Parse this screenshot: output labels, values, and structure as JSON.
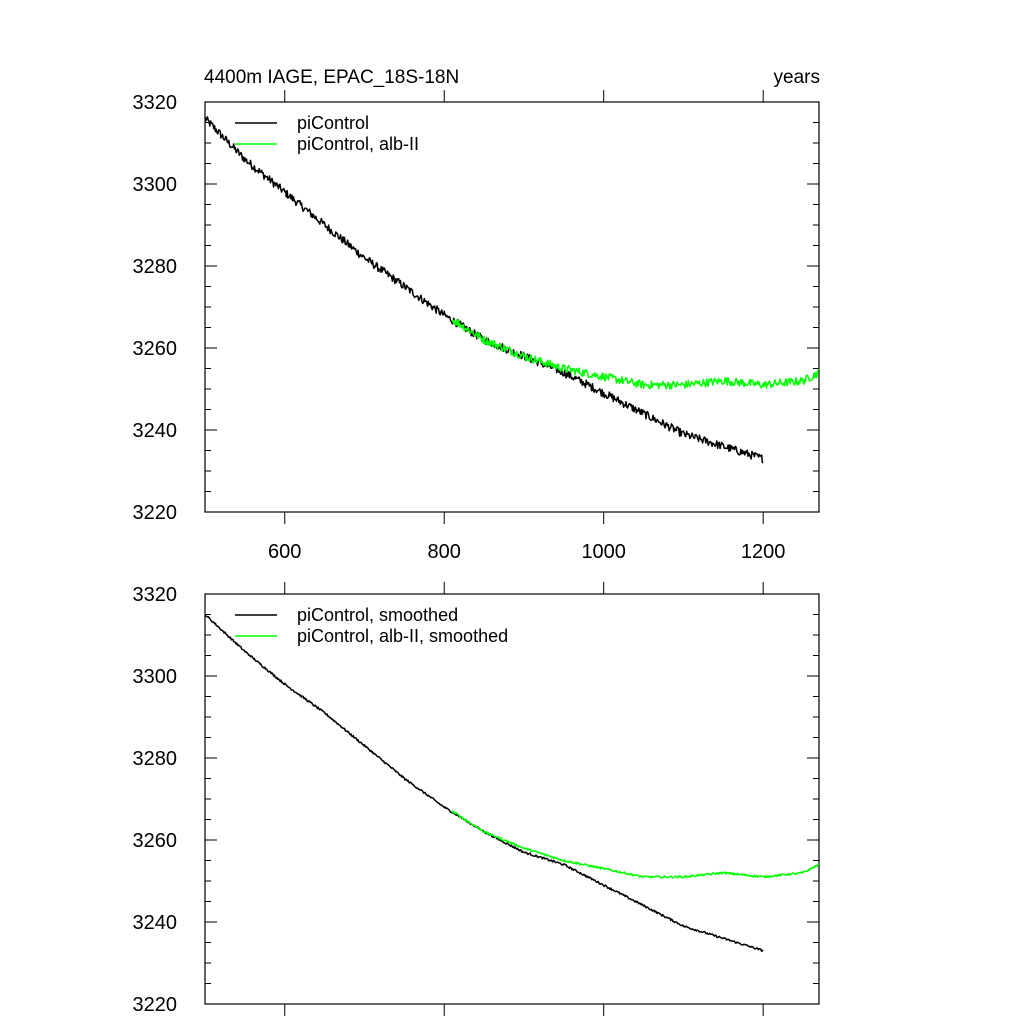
{
  "chart_data": [
    {
      "type": "line",
      "title_left": "4400m IAGE, EPAC_18S-18N",
      "title_right": "years",
      "xlabel": "",
      "ylabel": "",
      "xlim": [
        500,
        1270
      ],
      "ylim": [
        3220,
        3320
      ],
      "x_ticks": [
        600,
        800,
        1000,
        1200
      ],
      "x_tick_labels": [
        "600",
        "800",
        "1000",
        "1200"
      ],
      "y_ticks": [
        3220,
        3240,
        3260,
        3280,
        3300,
        3320
      ],
      "y_tick_labels": [
        "3220",
        "3240",
        "3260",
        "3280",
        "3300",
        "3320"
      ],
      "legend_position": "top-left",
      "series": [
        {
          "name": "piControl",
          "color": "#000000",
          "noise": 1.0,
          "x": [
            500,
            550,
            600,
            650,
            700,
            750,
            800,
            850,
            900,
            950,
            1000,
            1050,
            1100,
            1150,
            1200
          ],
          "values": [
            3316,
            3306,
            3298,
            3290,
            3282,
            3275,
            3268,
            3262,
            3258,
            3254,
            3249,
            3244,
            3239,
            3236,
            3233
          ]
        },
        {
          "name": "piControl, alb-II",
          "color": "#00ff00",
          "noise": 1.0,
          "x": [
            810,
            850,
            900,
            950,
            1000,
            1050,
            1100,
            1150,
            1200,
            1250,
            1270
          ],
          "values": [
            3267,
            3262,
            3258,
            3255,
            3253,
            3251,
            3251,
            3252,
            3251,
            3252,
            3254
          ]
        }
      ]
    },
    {
      "type": "line",
      "xlabel": "",
      "ylabel": "",
      "xlim": [
        500,
        1270
      ],
      "ylim": [
        3220,
        3320
      ],
      "x_ticks": [
        600,
        800,
        1000,
        1200
      ],
      "y_ticks": [
        3220,
        3240,
        3260,
        3280,
        3300,
        3320
      ],
      "y_tick_labels": [
        "3220",
        "3240",
        "3260",
        "3280",
        "3300",
        "3320"
      ],
      "legend_position": "top-left",
      "series": [
        {
          "name": "piControl, smoothed",
          "color": "#000000",
          "noise": 0.25,
          "x": [
            500,
            550,
            600,
            650,
            700,
            750,
            800,
            850,
            900,
            950,
            1000,
            1050,
            1100,
            1150,
            1200
          ],
          "values": [
            3315,
            3306,
            3298,
            3291,
            3283,
            3275,
            3268,
            3262,
            3257,
            3254,
            3249,
            3244,
            3239,
            3236,
            3233
          ]
        },
        {
          "name": "piControl, alb-II, smoothed",
          "color": "#00ff00",
          "noise": 0.25,
          "x": [
            810,
            850,
            900,
            950,
            1000,
            1050,
            1100,
            1150,
            1200,
            1250,
            1270
          ],
          "values": [
            3267,
            3262,
            3258,
            3255,
            3253,
            3251,
            3251,
            3252,
            3251,
            3252,
            3254
          ]
        }
      ]
    }
  ]
}
